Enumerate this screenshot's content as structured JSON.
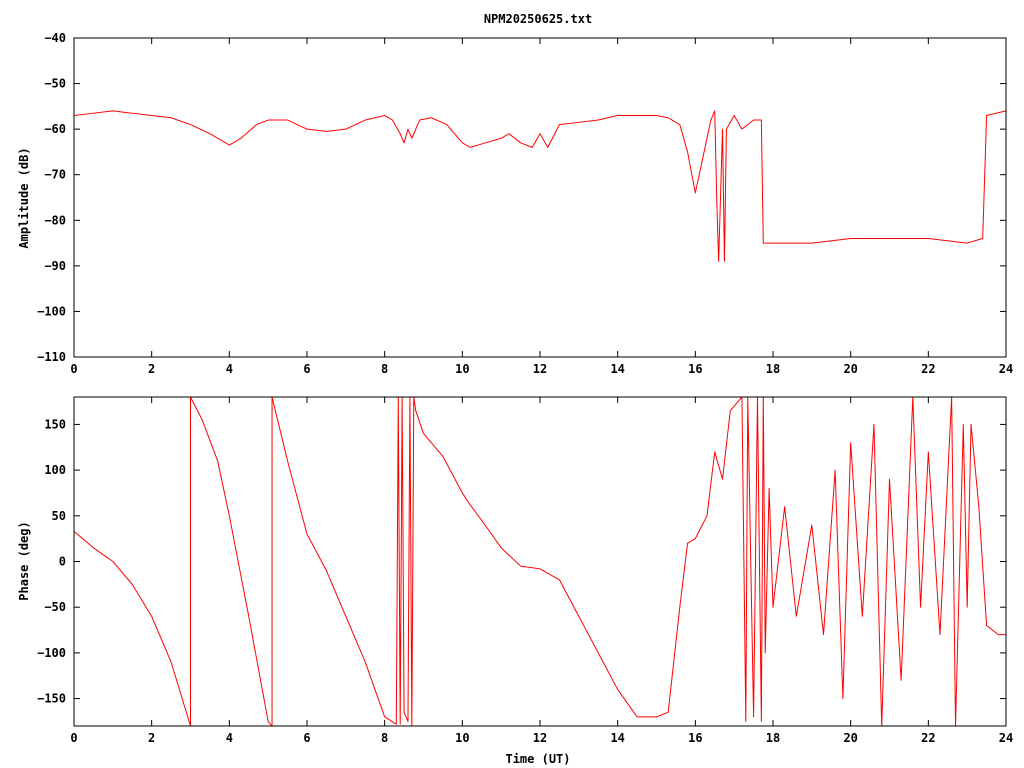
{
  "title": "NPM20250625.txt",
  "colors": {
    "trace": "#ff0000",
    "frame": "#000000",
    "background": "#ffffff"
  },
  "chart_data": [
    {
      "type": "line",
      "panel": "amplitude",
      "title": "NPM20250625.txt",
      "xlabel": "",
      "ylabel": "Amplitude (dB)",
      "xlim": [
        0,
        24
      ],
      "ylim": [
        -110,
        -40
      ],
      "grid": false,
      "xticks": [
        "0",
        "2",
        "4",
        "6",
        "8",
        "10",
        "12",
        "14",
        "16",
        "18",
        "20",
        "22",
        "24"
      ],
      "yticks": [
        "-110",
        "-100",
        "-90",
        "-80",
        "-70",
        "-60",
        "-50",
        "-40"
      ],
      "series": [
        {
          "x": [
            0.0,
            0.5,
            1.0,
            1.5,
            2.0,
            2.5,
            3.0,
            3.5,
            3.8,
            4.0,
            4.3,
            4.7,
            5.0,
            5.5,
            6.0,
            6.5,
            7.0,
            7.5,
            8.0,
            8.2,
            8.4,
            8.5,
            8.6,
            8.7,
            8.9,
            9.2,
            9.6,
            10.0,
            10.2,
            10.6,
            11.0,
            11.2,
            11.5,
            11.8,
            12.0,
            12.2,
            12.5,
            13.0,
            13.5,
            14.0,
            14.5,
            15.0,
            15.3,
            15.6,
            15.8,
            16.0,
            16.2,
            16.4,
            16.5,
            16.55,
            16.6,
            16.7,
            16.75,
            16.8,
            17.0,
            17.2,
            17.5,
            17.7,
            17.75,
            18.0,
            19.0,
            20.0,
            21.0,
            22.0,
            23.0,
            23.4,
            23.5,
            24.0
          ],
          "y": [
            -57,
            -56.5,
            -56,
            -56.5,
            -57,
            -57.5,
            -59,
            -61,
            -62.5,
            -63.5,
            -62,
            -59,
            -58,
            -58,
            -60,
            -60.5,
            -60,
            -58,
            -57,
            -58,
            -61,
            -63,
            -60,
            -62,
            -58,
            -57.5,
            -59,
            -63,
            -64,
            -63,
            -62,
            -61,
            -63,
            -64,
            -61,
            -64,
            -59,
            -58.5,
            -58,
            -57,
            -57,
            -57,
            -57.5,
            -59,
            -65,
            -74,
            -66,
            -58,
            -56,
            -75,
            -89,
            -60,
            -89,
            -60,
            -57,
            -60,
            -58,
            -58,
            -85,
            -85,
            -85,
            -84,
            -84,
            -84,
            -85,
            -84,
            -57,
            -56
          ]
        }
      ]
    },
    {
      "type": "line",
      "panel": "phase",
      "title": "",
      "xlabel": "Time (UT)",
      "ylabel": "Phase (deg)",
      "xlim": [
        0,
        24
      ],
      "ylim": [
        -180,
        180
      ],
      "grid": false,
      "xticks": [
        "0",
        "2",
        "4",
        "6",
        "8",
        "10",
        "12",
        "14",
        "16",
        "18",
        "20",
        "22",
        "24"
      ],
      "yticks": [
        "-150",
        "-100",
        "-50",
        "0",
        "50",
        "100",
        "150"
      ],
      "series": [
        {
          "x": [
            0.0,
            0.5,
            1.0,
            1.5,
            2.0,
            2.5,
            3.0,
            3.0,
            3.3,
            3.7,
            4.0,
            4.5,
            5.0,
            5.1,
            5.1,
            5.5,
            6.0,
            6.5,
            7.0,
            7.5,
            8.0,
            8.3,
            8.35,
            8.4,
            8.45,
            8.5,
            8.6,
            8.65,
            8.7,
            8.75,
            8.8,
            9.0,
            9.5,
            10.0,
            10.2,
            10.5,
            11.0,
            11.5,
            12.0,
            12.5,
            13.0,
            13.5,
            14.0,
            14.5,
            15.0,
            15.3,
            15.6,
            15.8,
            16.0,
            16.3,
            16.5,
            16.7,
            16.9,
            17.2,
            17.3,
            17.35,
            17.5,
            17.6,
            17.7,
            17.75,
            17.8,
            17.9,
            18.0,
            18.3,
            18.6,
            19.0,
            19.3,
            19.6,
            19.8,
            20.0,
            20.3,
            20.6,
            20.8,
            21.0,
            21.3,
            21.6,
            21.8,
            22.0,
            22.3,
            22.6,
            22.7,
            22.9,
            23.0,
            23.1,
            23.3,
            23.5,
            23.8,
            24.0
          ],
          "y": [
            33,
            15,
            0,
            -25,
            -60,
            -110,
            -180,
            180,
            155,
            110,
            50,
            -60,
            -175,
            -180,
            180,
            110,
            30,
            -10,
            -60,
            -110,
            -170,
            -178,
            180,
            -178,
            180,
            -165,
            -175,
            180,
            -180,
            180,
            165,
            140,
            115,
            75,
            62,
            45,
            15,
            -5,
            -8,
            -20,
            -60,
            -100,
            -140,
            -170,
            -170,
            -165,
            -50,
            20,
            25,
            50,
            120,
            90,
            165,
            180,
            -175,
            180,
            -170,
            180,
            -175,
            180,
            -100,
            80,
            -50,
            60,
            -60,
            40,
            -80,
            100,
            -150,
            130,
            -60,
            150,
            -180,
            90,
            -130,
            180,
            -50,
            120,
            -80,
            180,
            -180,
            150,
            -50,
            150,
            60,
            -70,
            -80,
            -80
          ]
        }
      ]
    }
  ]
}
